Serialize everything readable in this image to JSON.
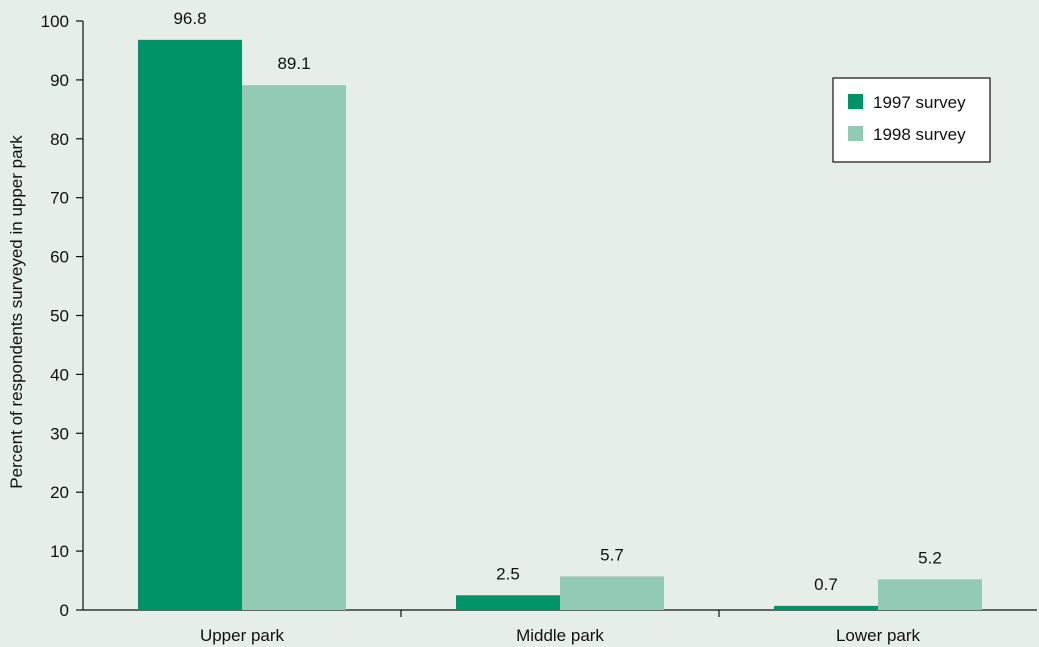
{
  "chart_data": {
    "type": "bar",
    "title": "",
    "xlabel": "",
    "ylabel": "Percent of respondents surveyed in upper park",
    "categories": [
      "Upper park",
      "Middle park",
      "Lower park"
    ],
    "series": [
      {
        "name": "1997 survey",
        "values": [
          96.8,
          2.5,
          0.7
        ],
        "labels": [
          "96.8",
          "2.5",
          "0.7"
        ],
        "color": "#009367"
      },
      {
        "name": "1998 survey",
        "values": [
          89.1,
          5.7,
          5.2
        ],
        "labels": [
          "89.1",
          "5.7",
          "5.2"
        ],
        "color": "#92cab5"
      }
    ],
    "ylim": [
      0,
      100
    ],
    "yticks": [
      0,
      10,
      20,
      30,
      40,
      50,
      60,
      70,
      80,
      90,
      100
    ],
    "grid": false,
    "legend_position": "top-right",
    "background_color": "#e6eee9"
  }
}
